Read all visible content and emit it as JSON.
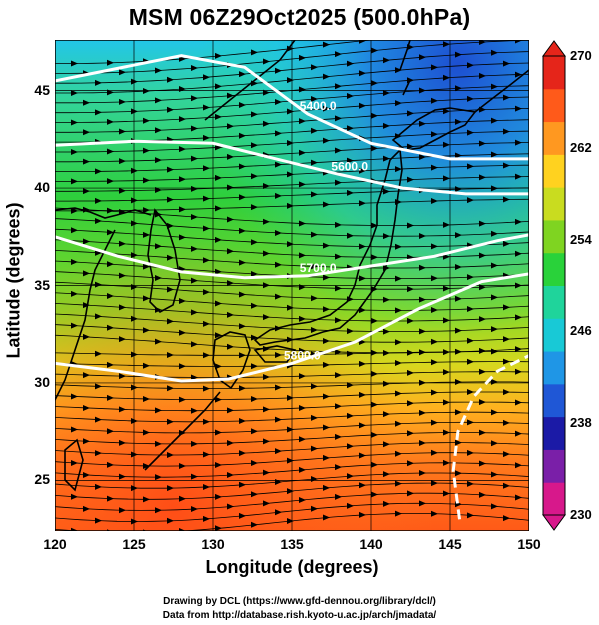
{
  "title": "MSM 06Z29Oct2025 (500.0hPa)",
  "map": {
    "xlabel": "Longitude (degrees)",
    "ylabel": "Latitude  (degrees)",
    "xlim": [
      120,
      150
    ],
    "ylim": [
      22.4,
      47.6
    ],
    "x_ticks": [
      "120",
      "125",
      "130",
      "135",
      "140",
      "145",
      "150"
    ],
    "y_ticks": [
      "25",
      "30",
      "35",
      "40",
      "45"
    ],
    "field": "temperature (K), shaded",
    "contours": [
      {
        "label": "5400.0",
        "lat_at": [
          [
            120,
            45.5
          ],
          [
            128,
            46.8
          ],
          [
            132,
            46.2
          ],
          [
            136,
            43.8
          ],
          [
            140,
            42.3
          ],
          [
            145,
            41.5
          ],
          [
            150,
            41.5
          ]
        ]
      },
      {
        "label": "5600.0",
        "lat_at": [
          [
            120,
            42.2
          ],
          [
            125,
            42.4
          ],
          [
            130,
            42.3
          ],
          [
            134,
            41.5
          ],
          [
            138,
            40.7
          ],
          [
            142,
            40.0
          ],
          [
            146,
            39.7
          ],
          [
            150,
            39.7
          ]
        ]
      },
      {
        "label": "5700.0",
        "lat_at": [
          [
            120,
            37.5
          ],
          [
            124,
            36.5
          ],
          [
            128,
            35.7
          ],
          [
            132,
            35.4
          ],
          [
            136,
            35.5
          ],
          [
            140,
            36.0
          ],
          [
            144,
            36.5
          ],
          [
            148,
            37.3
          ],
          [
            150,
            37.6
          ]
        ]
      },
      {
        "label": "5800.0",
        "lat_at": [
          [
            120,
            31.0
          ],
          [
            124,
            30.6
          ],
          [
            128,
            30.1
          ],
          [
            131,
            30.2
          ],
          [
            135,
            31.0
          ],
          [
            139,
            32.1
          ],
          [
            143,
            33.8
          ],
          [
            147,
            35.2
          ],
          [
            150,
            35.6
          ]
        ]
      },
      {
        "label": "",
        "lat_at": [
          [
            145.6,
            23.0
          ],
          [
            145.2,
            25.5
          ],
          [
            145.5,
            27.5
          ],
          [
            146.5,
            29.3
          ],
          [
            148,
            30.6
          ],
          [
            150,
            31.4
          ]
        ]
      }
    ]
  },
  "colorbar": {
    "min": 230,
    "max": 270,
    "labels": [
      "270",
      "262",
      "254",
      "246",
      "238",
      "230"
    ],
    "colors": [
      "#d7188b",
      "#7a1fa8",
      "#1b1aa6",
      "#1f57d6",
      "#1f96e6",
      "#18c9d6",
      "#1fd49b",
      "#29d23a",
      "#7fd421",
      "#c9dc1f",
      "#ffd21f",
      "#ff9820",
      "#ff5a1a",
      "#e5251a"
    ]
  },
  "credits": {
    "line1": "Drawing by DCL (https://www.gfd-dennou.org/library/dcl/)",
    "line2": "Data from http://database.rish.kyoto-u.ac.jp/arch/jmadata/"
  }
}
